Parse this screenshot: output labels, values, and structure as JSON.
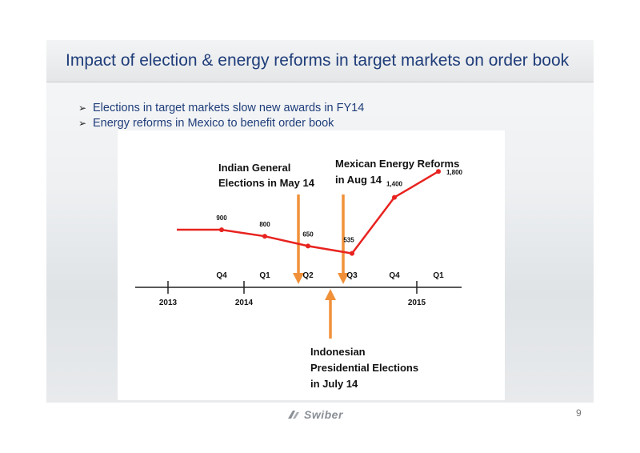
{
  "title": "Impact of election & energy reforms in target markets on order book",
  "bullets": [
    "Elections in target markets slow new awards in FY14",
    "Energy reforms in Mexico to benefit order book"
  ],
  "annotations": {
    "india": [
      "Indian General",
      "Elections in May 14"
    ],
    "mexico": [
      "Mexican Energy Reforms",
      "in Aug 14"
    ],
    "indonesia": [
      "Indonesian",
      "Presidential Elections",
      "in July 14"
    ]
  },
  "colors": {
    "line": "#e8231f",
    "arrow": "#f0913a",
    "title": "#1f3d7a"
  },
  "chart_data": {
    "type": "line",
    "quarters": [
      "Q4",
      "Q1",
      "Q2",
      "Q3",
      "Q4",
      "Q1"
    ],
    "years": [
      "2013",
      "2014",
      "2015"
    ],
    "values": [
      900,
      800,
      650,
      535,
      1400,
      1800
    ],
    "value_labels": [
      "900",
      "800",
      "650",
      "535",
      "1,400",
      "1,800"
    ]
  },
  "page_number": "9",
  "logo_text": "Swiber"
}
